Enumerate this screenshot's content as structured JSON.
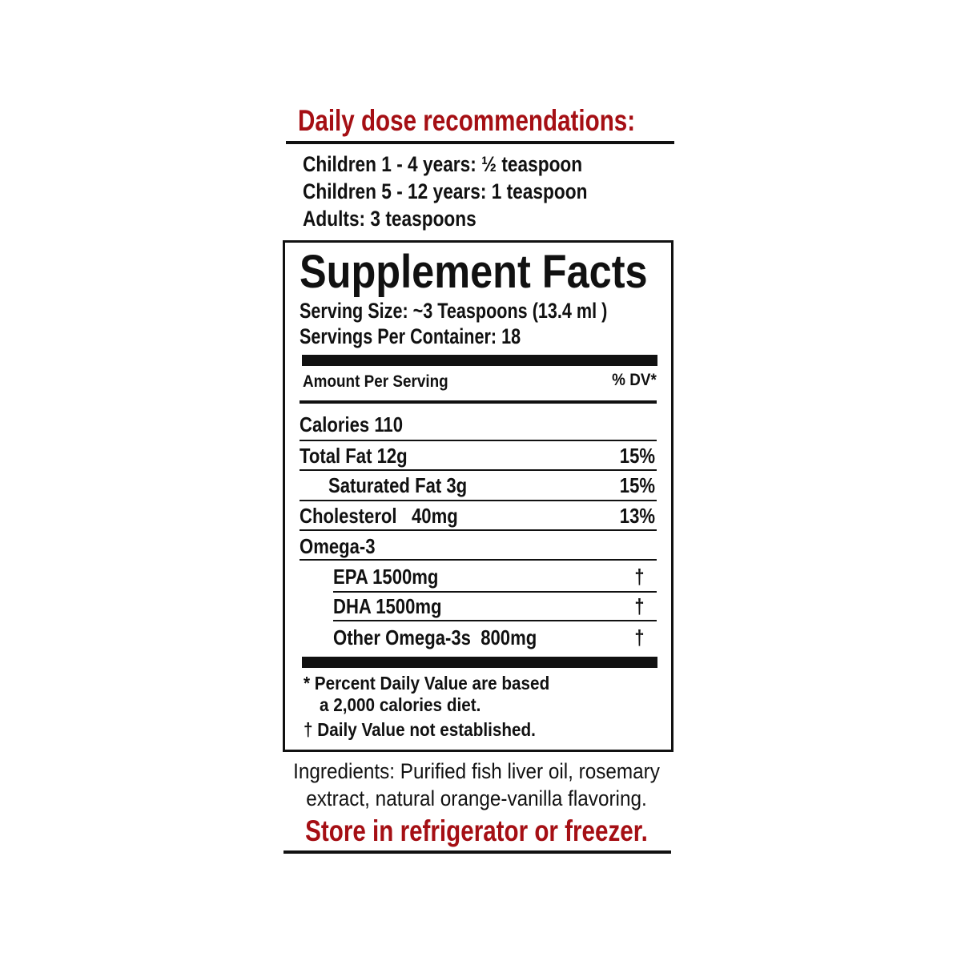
{
  "dose": {
    "title": "Daily dose recommendations:",
    "lines": [
      "Children 1 - 4 years:  ½ teaspoon",
      "Children 5 - 12 years: 1 teaspoon",
      "Adults: 3 teaspoons"
    ]
  },
  "facts": {
    "title": "Supplement Facts",
    "serving_size": "Serving Size: ~3 Teaspoons (13.4 ml )",
    "servings_per_container": "Servings Per Container: 18",
    "amount_header": "Amount Per Serving",
    "dv_header": "% DV*",
    "calories": "Calories 110",
    "rows": [
      {
        "label": "Total Fat  12g",
        "dv": "15%"
      },
      {
        "label": "Saturated Fat 3g",
        "dv": "15%"
      },
      {
        "label": "Cholesterol   40mg",
        "dv": "13%"
      },
      {
        "label": "Omega-3",
        "dv": ""
      },
      {
        "label": "EPA 1500mg",
        "dv": "†"
      },
      {
        "label": "DHA 1500mg",
        "dv": "†"
      },
      {
        "label": "Other Omega-3s  800mg",
        "dv": "†"
      }
    ],
    "footnote1a": "* Percent Daily Value are based",
    "footnote1b": "a 2,000 calories diet.",
    "footnote2": "† Daily Value not established."
  },
  "ingredients": {
    "line1": "Ingredients: Purified fish liver oil, rosemary",
    "line2": "extract, natural orange-vanilla flavoring."
  },
  "storage": "Store in refrigerator or freezer.",
  "colors": {
    "accent": "#a50f14",
    "text": "#111111"
  }
}
